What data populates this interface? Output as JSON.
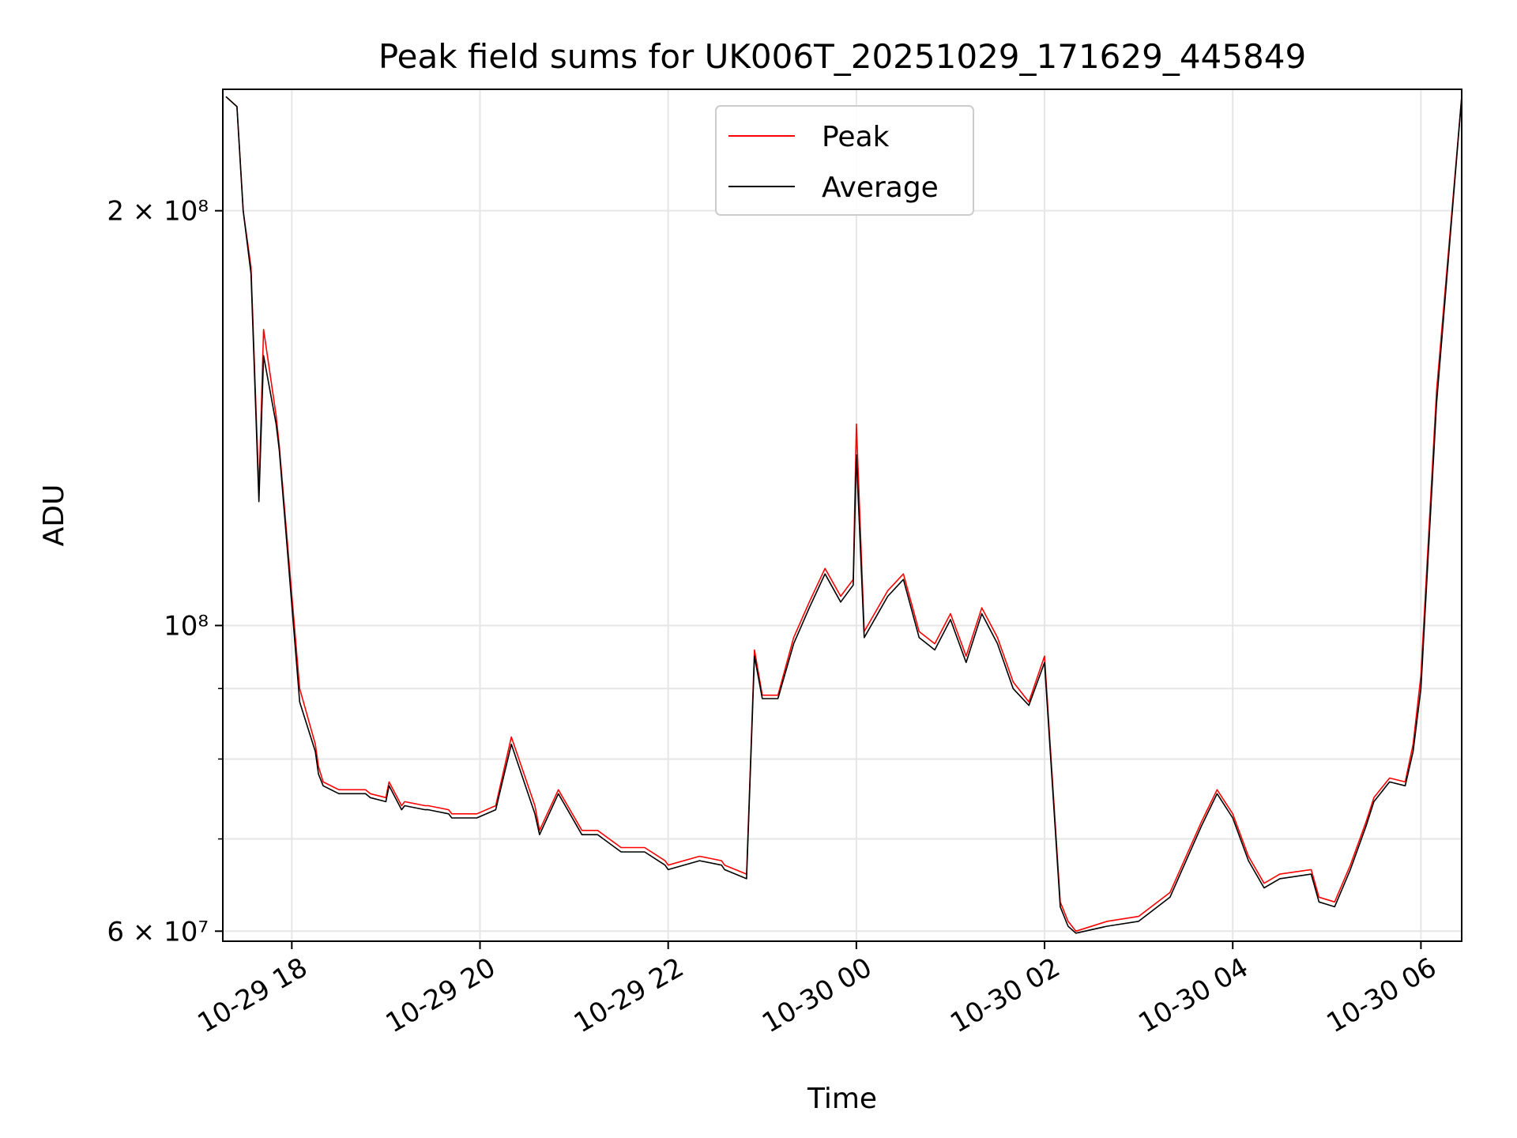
{
  "chart_data": {
    "type": "line",
    "title": "Peak field sums for UK006T_20251029_171629_445849",
    "xlabel": "Time",
    "ylabel": "ADU",
    "yscale": "log",
    "ylim": [
      59000000.0,
      245000000.0
    ],
    "xlim": [
      "2025-10-29 17:16",
      "2025-10-30 06:26"
    ],
    "grid": true,
    "legend_position": "top-center",
    "x_ticks": [
      {
        "value": "2025-10-29 18:00",
        "label": "10-29 18"
      },
      {
        "value": "2025-10-29 20:00",
        "label": "10-29 20"
      },
      {
        "value": "2025-10-29 22:00",
        "label": "10-29 22"
      },
      {
        "value": "2025-10-30 00:00",
        "label": "10-30 00"
      },
      {
        "value": "2025-10-30 02:00",
        "label": "10-30 02"
      },
      {
        "value": "2025-10-30 04:00",
        "label": "10-30 04"
      },
      {
        "value": "2025-10-30 06:00",
        "label": "10-30 06"
      }
    ],
    "y_major_ticks": [
      {
        "value": 60000000,
        "label": "6 × 10⁷"
      },
      {
        "value": 100000000,
        "label": "10⁸"
      },
      {
        "value": 200000000,
        "label": "2 × 10⁸"
      }
    ],
    "y_minor_ticks": [
      70000000,
      80000000,
      90000000
    ],
    "series": [
      {
        "name": "Peak",
        "color": "#ff0000",
        "x": [
          "2025-10-29 17:18",
          "2025-10-29 17:25",
          "2025-10-29 17:29",
          "2025-10-29 17:34",
          "2025-10-29 17:39",
          "2025-10-29 17:42",
          "2025-10-29 17:50",
          "2025-10-29 17:52",
          "2025-10-29 18:05",
          "2025-10-29 18:15",
          "2025-10-29 18:17",
          "2025-10-29 18:20",
          "2025-10-29 18:30",
          "2025-10-29 18:47",
          "2025-10-29 18:50",
          "2025-10-29 19:00",
          "2025-10-29 19:02",
          "2025-10-29 19:10",
          "2025-10-29 19:12",
          "2025-10-29 19:25",
          "2025-10-29 19:27",
          "2025-10-29 19:40",
          "2025-10-29 19:42",
          "2025-10-29 19:58",
          "2025-10-29 20:10",
          "2025-10-29 20:20",
          "2025-10-29 20:35",
          "2025-10-29 20:38",
          "2025-10-29 20:50",
          "2025-10-29 21:05",
          "2025-10-29 21:15",
          "2025-10-29 21:30",
          "2025-10-29 21:45",
          "2025-10-29 21:58",
          "2025-10-29 22:00",
          "2025-10-29 22:20",
          "2025-10-29 22:34",
          "2025-10-29 22:36",
          "2025-10-29 22:50",
          "2025-10-29 22:55",
          "2025-10-29 23:00",
          "2025-10-29 23:10",
          "2025-10-29 23:20",
          "2025-10-29 23:30",
          "2025-10-29 23:40",
          "2025-10-29 23:50",
          "2025-10-29 23:58",
          "2025-10-30 00:00",
          "2025-10-30 00:05",
          "2025-10-30 00:20",
          "2025-10-30 00:30",
          "2025-10-30 00:40",
          "2025-10-30 00:50",
          "2025-10-30 01:00",
          "2025-10-30 01:10",
          "2025-10-30 01:20",
          "2025-10-30 01:30",
          "2025-10-30 01:40",
          "2025-10-30 01:50",
          "2025-10-30 02:00",
          "2025-10-30 02:10",
          "2025-10-30 02:15",
          "2025-10-30 02:20",
          "2025-10-30 02:40",
          "2025-10-30 03:00",
          "2025-10-30 03:20",
          "2025-10-30 03:40",
          "2025-10-30 03:50",
          "2025-10-30 04:00",
          "2025-10-30 04:10",
          "2025-10-30 04:20",
          "2025-10-30 04:30",
          "2025-10-30 04:50",
          "2025-10-30 04:55",
          "2025-10-30 05:05",
          "2025-10-30 05:15",
          "2025-10-30 05:25",
          "2025-10-30 05:30",
          "2025-10-30 05:40",
          "2025-10-30 05:50",
          "2025-10-30 05:55",
          "2025-10-30 06:00",
          "2025-10-30 06:10",
          "2025-10-30 06:26"
        ],
        "y": [
          242000000,
          238000000,
          200000000,
          182000000,
          125000000,
          164000000,
          142000000,
          135000000,
          90000000,
          82000000,
          79000000,
          77000000,
          76000000,
          76000000,
          75500000,
          75000000,
          77000000,
          74000000,
          74500000,
          74000000,
          74000000,
          73500000,
          73000000,
          73000000,
          74000000,
          83000000,
          74000000,
          71000000,
          76000000,
          71000000,
          71000000,
          69000000,
          69000000,
          67500000,
          67000000,
          68000000,
          67500000,
          67000000,
          66000000,
          96000000,
          89000000,
          89000000,
          98000000,
          104000000,
          110000000,
          105000000,
          108000000,
          140000000,
          99000000,
          106000000,
          109000000,
          99000000,
          97000000,
          102000000,
          95000000,
          103000000,
          98000000,
          91000000,
          88000000,
          95000000,
          63000000,
          61000000,
          60000000,
          61000000,
          61500000,
          64000000,
          72000000,
          76000000,
          73000000,
          68000000,
          65000000,
          66000000,
          66500000,
          63500000,
          63000000,
          67000000,
          72000000,
          75000000,
          77500000,
          77000000,
          82000000,
          92000000,
          148000000,
          242000000
        ]
      },
      {
        "name": "Average",
        "color": "#000000",
        "x": [
          "2025-10-29 17:18",
          "2025-10-29 17:25",
          "2025-10-29 17:29",
          "2025-10-29 17:34",
          "2025-10-29 17:39",
          "2025-10-29 17:42",
          "2025-10-29 17:50",
          "2025-10-29 17:52",
          "2025-10-29 18:05",
          "2025-10-29 18:15",
          "2025-10-29 18:17",
          "2025-10-29 18:20",
          "2025-10-29 18:30",
          "2025-10-29 18:47",
          "2025-10-29 18:50",
          "2025-10-29 19:00",
          "2025-10-29 19:02",
          "2025-10-29 19:10",
          "2025-10-29 19:12",
          "2025-10-29 19:25",
          "2025-10-29 19:27",
          "2025-10-29 19:40",
          "2025-10-29 19:42",
          "2025-10-29 19:58",
          "2025-10-29 20:10",
          "2025-10-29 20:20",
          "2025-10-29 20:35",
          "2025-10-29 20:38",
          "2025-10-29 20:50",
          "2025-10-29 21:05",
          "2025-10-29 21:15",
          "2025-10-29 21:30",
          "2025-10-29 21:45",
          "2025-10-29 21:58",
          "2025-10-29 22:00",
          "2025-10-29 22:20",
          "2025-10-29 22:34",
          "2025-10-29 22:36",
          "2025-10-29 22:50",
          "2025-10-29 22:55",
          "2025-10-29 23:00",
          "2025-10-29 23:10",
          "2025-10-29 23:20",
          "2025-10-29 23:30",
          "2025-10-29 23:40",
          "2025-10-29 23:50",
          "2025-10-29 23:58",
          "2025-10-30 00:00",
          "2025-10-30 00:05",
          "2025-10-30 00:20",
          "2025-10-30 00:30",
          "2025-10-30 00:40",
          "2025-10-30 00:50",
          "2025-10-30 01:00",
          "2025-10-30 01:10",
          "2025-10-30 01:20",
          "2025-10-30 01:30",
          "2025-10-30 01:40",
          "2025-10-30 01:50",
          "2025-10-30 02:00",
          "2025-10-30 02:10",
          "2025-10-30 02:15",
          "2025-10-30 02:20",
          "2025-10-30 02:40",
          "2025-10-30 03:00",
          "2025-10-30 03:20",
          "2025-10-30 03:40",
          "2025-10-30 03:50",
          "2025-10-30 04:00",
          "2025-10-30 04:10",
          "2025-10-30 04:20",
          "2025-10-30 04:30",
          "2025-10-30 04:50",
          "2025-10-30 04:55",
          "2025-10-30 05:05",
          "2025-10-30 05:15",
          "2025-10-30 05:25",
          "2025-10-30 05:30",
          "2025-10-30 05:40",
          "2025-10-30 05:50",
          "2025-10-30 05:55",
          "2025-10-30 06:00",
          "2025-10-30 06:10",
          "2025-10-30 06:26"
        ],
        "y": [
          242000000,
          238000000,
          200000000,
          180000000,
          123000000,
          157000000,
          140000000,
          134000000,
          88000000,
          81000000,
          78000000,
          76500000,
          75500000,
          75500000,
          75000000,
          74500000,
          76500000,
          73500000,
          74000000,
          73500000,
          73500000,
          73000000,
          72500000,
          72500000,
          73500000,
          82000000,
          73000000,
          70500000,
          75500000,
          70500000,
          70500000,
          68500000,
          68500000,
          67000000,
          66500000,
          67500000,
          67000000,
          66500000,
          65500000,
          95000000,
          88500000,
          88500000,
          97000000,
          103000000,
          109000000,
          104000000,
          107000000,
          133000000,
          98000000,
          105000000,
          108000000,
          98000000,
          96000000,
          101000000,
          94000000,
          102000000,
          97000000,
          90000000,
          87500000,
          94000000,
          62500000,
          60500000,
          59800000,
          60500000,
          61000000,
          63500000,
          71500000,
          75500000,
          72500000,
          67500000,
          64500000,
          65500000,
          66000000,
          63000000,
          62500000,
          66500000,
          71500000,
          74500000,
          77000000,
          76500000,
          81000000,
          90000000,
          145000000,
          242000000
        ]
      }
    ]
  }
}
